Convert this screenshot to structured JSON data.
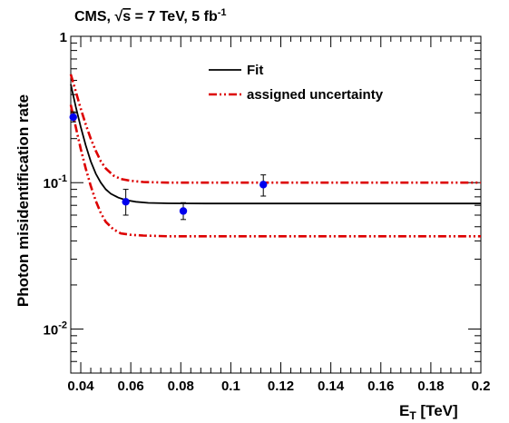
{
  "chart_data": {
    "type": "scatter",
    "title_parts": {
      "prefix": "CMS, ",
      "sqrt_sym": "√",
      "sqrt_arg": "s",
      "rest": " = 7 TeV, 5 fb",
      "sup": "-1"
    },
    "xlabel_parts": {
      "main": "E",
      "sub": "T",
      "rest": " [TeV]"
    },
    "ylabel": "Photon misidentification rate",
    "x_scale": "linear",
    "y_scale": "log",
    "xlim": [
      0.036,
      0.2
    ],
    "ylim": [
      0.005,
      1
    ],
    "x_ticks": [
      0.04,
      0.06,
      0.08,
      0.1,
      0.12,
      0.14,
      0.16,
      0.18,
      0.2
    ],
    "x_tick_labels": [
      "0.04",
      "0.06",
      "0.08",
      "0.1",
      "0.12",
      "0.14",
      "0.16",
      "0.18",
      "0.2"
    ],
    "y_tick_labels": [
      {
        "value": 1,
        "base": "1",
        "exp": ""
      },
      {
        "value": 0.1,
        "base": "10",
        "exp": "-1"
      },
      {
        "value": 0.01,
        "base": "10",
        "exp": "-2"
      }
    ],
    "grid": false,
    "legend_placement": "top-center",
    "legend": {
      "fit": "Fit",
      "uncertainty": "assigned uncertainty"
    },
    "colors": {
      "fit": "#000000",
      "uncertainty": "#dd0000",
      "points": "#0000ee"
    },
    "points": [
      {
        "x": 0.037,
        "y": 0.28,
        "err_lo": 0.02,
        "err_hi": 0.025
      },
      {
        "x": 0.058,
        "y": 0.074,
        "err_lo": 0.014,
        "err_hi": 0.016
      },
      {
        "x": 0.081,
        "y": 0.064,
        "err_lo": 0.008,
        "err_hi": 0.009
      },
      {
        "x": 0.113,
        "y": 0.097,
        "err_lo": 0.016,
        "err_hi": 0.016
      }
    ],
    "fit_curve": {
      "x": [
        0.036,
        0.038,
        0.04,
        0.042,
        0.044,
        0.046,
        0.048,
        0.05,
        0.052,
        0.055,
        0.058,
        0.062,
        0.067,
        0.075,
        0.09,
        0.12,
        0.16,
        0.2
      ],
      "y": [
        0.47,
        0.33,
        0.24,
        0.18,
        0.14,
        0.115,
        0.1,
        0.09,
        0.084,
        0.079,
        0.076,
        0.074,
        0.0728,
        0.0722,
        0.072,
        0.072,
        0.072,
        0.072
      ]
    },
    "uncertainty_upper": {
      "x": [
        0.036,
        0.038,
        0.04,
        0.042,
        0.044,
        0.046,
        0.048,
        0.05,
        0.053,
        0.056,
        0.06,
        0.065,
        0.075,
        0.1,
        0.15,
        0.2
      ],
      "y": [
        0.55,
        0.42,
        0.32,
        0.25,
        0.2,
        0.165,
        0.14,
        0.125,
        0.112,
        0.106,
        0.103,
        0.101,
        0.1,
        0.1,
        0.1,
        0.1
      ]
    },
    "uncertainty_lower": {
      "x": [
        0.036,
        0.038,
        0.04,
        0.042,
        0.044,
        0.046,
        0.048,
        0.05,
        0.053,
        0.056,
        0.06,
        0.065,
        0.075,
        0.1,
        0.15,
        0.2
      ],
      "y": [
        0.34,
        0.24,
        0.17,
        0.125,
        0.095,
        0.075,
        0.062,
        0.054,
        0.048,
        0.045,
        0.044,
        0.0435,
        0.043,
        0.043,
        0.043,
        0.043
      ]
    }
  }
}
